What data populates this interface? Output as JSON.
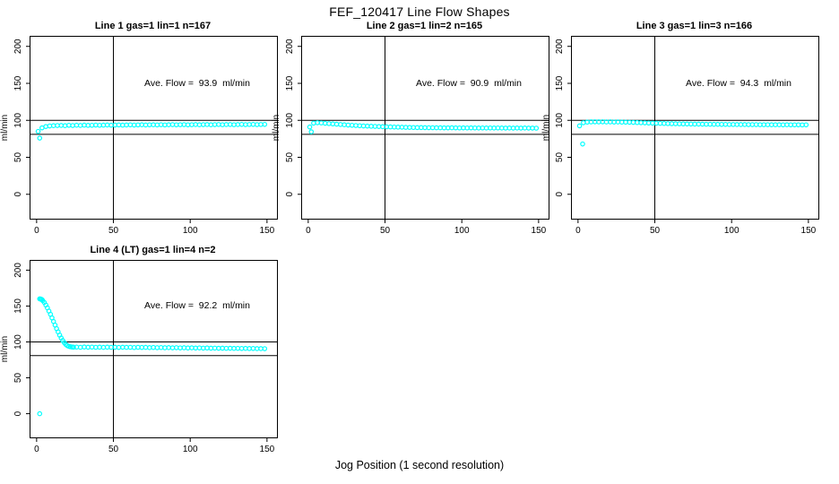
{
  "chart_data": {
    "type": "scatter",
    "title": "FEF_120417  Line Flow Shapes",
    "xlabel": "Jog Position (1 second resolution)",
    "ylabel": "ml/min",
    "point_color": "#00FFFF",
    "line_color": "#000000",
    "axes": {
      "xlim": [
        -4,
        156.5
      ],
      "ylim": [
        -33,
        213
      ],
      "x_ticks": [
        0,
        50,
        100,
        150
      ],
      "y_ticks": [
        0,
        50,
        100,
        150,
        200
      ],
      "grid": false
    },
    "reference_lines": {
      "horizontal": [
        100,
        81
      ],
      "vertical": [
        50
      ]
    },
    "band_x": [
      1,
      3.5,
      6,
      8.5,
      11,
      13.5,
      16,
      18.5,
      21,
      23.5,
      26,
      28.5,
      31,
      33.5,
      36,
      38.5,
      41,
      43.5,
      46,
      48.5,
      51,
      53.5,
      56,
      58.5,
      61,
      63.5,
      66,
      68.5,
      71,
      73.5,
      76,
      78.5,
      81,
      83.5,
      86,
      88.5,
      91,
      93.5,
      96,
      98.5,
      101,
      103.5,
      106,
      108.5,
      111,
      113.5,
      116,
      118.5,
      121,
      123.5,
      126,
      128.5,
      131,
      133.5,
      136,
      138.5,
      141,
      143.5,
      146,
      148.5
    ],
    "subplots": [
      {
        "title": "Line 1 gas=1 lin=1 n=167",
        "line": 1,
        "gas": 1,
        "lin": 1,
        "n": 167,
        "ave_flow_ml_min": 93.9,
        "annotation": "Ave. Flow =  93.9  ml/min",
        "stray_points": [
          [
            2,
            76
          ]
        ],
        "y": [
          85.0,
          89.8,
          91.6,
          92.4,
          92.8,
          93.0,
          93.1,
          92.8,
          93.3,
          93.0,
          93.4,
          93.1,
          93.5,
          93.2,
          93.3,
          93.6,
          93.3,
          93.5,
          93.7,
          93.4,
          93.6,
          93.8,
          93.5,
          93.7,
          93.9,
          93.6,
          93.8,
          94.0,
          93.7,
          93.9,
          94.0,
          93.8,
          94.1,
          93.8,
          94.0,
          94.2,
          93.9,
          94.1,
          94.2,
          93.9,
          94.1,
          94.3,
          94.0,
          94.2,
          94.3,
          94.0,
          94.2,
          94.4,
          94.1,
          94.3,
          94.4,
          94.1,
          94.3,
          94.5,
          94.2,
          94.4,
          94.5,
          94.2,
          94.4,
          94.5
        ]
      },
      {
        "title": "Line 2 gas=1 lin=2 n=165",
        "line": 2,
        "gas": 1,
        "lin": 2,
        "n": 165,
        "ave_flow_ml_min": 90.9,
        "annotation": "Ave. Flow =  90.9  ml/min",
        "stray_points": [
          [
            2,
            84.5
          ]
        ],
        "y": [
          91.0,
          96.2,
          96.8,
          96.5,
          96.0,
          95.6,
          95.2,
          94.8,
          94.4,
          94.0,
          93.6,
          93.3,
          93.0,
          92.7,
          92.4,
          92.2,
          92.0,
          91.8,
          91.6,
          91.4,
          91.2,
          91.1,
          90.9,
          90.8,
          90.7,
          90.5,
          90.4,
          90.3,
          90.2,
          90.2,
          90.1,
          90.0,
          90.0,
          89.9,
          89.9,
          89.8,
          89.8,
          89.9,
          89.8,
          89.7,
          89.8,
          89.7,
          89.8,
          89.7,
          89.6,
          89.7,
          89.6,
          89.7,
          89.6,
          89.7,
          89.6,
          89.5,
          89.6,
          89.5,
          89.6,
          89.5,
          89.6,
          89.5,
          89.5,
          89.4
        ]
      },
      {
        "title": "Line 3 gas=1 lin=3 n=166",
        "line": 3,
        "gas": 1,
        "lin": 3,
        "n": 166,
        "ave_flow_ml_min": 94.3,
        "annotation": "Ave. Flow =  94.3  ml/min",
        "stray_points": [
          [
            3,
            68
          ]
        ],
        "y": [
          92.5,
          96.8,
          97.6,
          97.9,
          98.0,
          97.9,
          98.0,
          97.8,
          97.9,
          97.7,
          97.8,
          97.6,
          97.5,
          97.4,
          97.2,
          97.0,
          96.8,
          96.6,
          96.4,
          96.2,
          96.1,
          95.9,
          95.8,
          95.6,
          95.5,
          95.4,
          95.3,
          95.2,
          95.1,
          95.0,
          94.9,
          94.9,
          94.8,
          94.7,
          94.7,
          94.6,
          94.6,
          94.5,
          94.5,
          94.4,
          94.4,
          94.3,
          94.3,
          94.3,
          94.2,
          94.2,
          94.2,
          94.1,
          94.1,
          94.1,
          94.0,
          94.0,
          94.0,
          93.9,
          94.0,
          93.9,
          93.9,
          93.9,
          93.8,
          93.9
        ]
      },
      {
        "title": "Line 4 (LT) gas=1 lin=4 n=2",
        "line": 4,
        "line_note": "LT",
        "gas": 1,
        "lin": 4,
        "n": 2,
        "ave_flow_ml_min": 92.2,
        "annotation": "Ave. Flow =  92.2  ml/min",
        "stray_points": [
          [
            2,
            0
          ]
        ],
        "x": [
          2,
          2.5,
          3,
          3.5,
          4,
          5,
          6,
          7,
          8,
          9,
          10,
          11,
          12,
          13,
          14,
          15,
          16,
          17,
          18,
          19,
          20,
          21,
          22,
          23,
          24,
          26,
          28.5,
          31,
          33.5,
          36,
          38.5,
          41,
          43.5,
          46,
          48.5,
          51,
          53.5,
          56,
          58.5,
          61,
          63.5,
          66,
          68.5,
          71,
          73.5,
          76,
          78.5,
          81,
          83.5,
          86,
          88.5,
          91,
          93.5,
          96,
          98.5,
          101,
          103.5,
          106,
          108.5,
          111,
          113.5,
          116,
          118.5,
          121,
          123.5,
          126,
          128.5,
          131,
          133.5,
          136,
          138.5,
          141,
          143.5,
          146,
          148.5
        ],
        "y": [
          160,
          159.8,
          159.5,
          158.8,
          157.5,
          155,
          151.5,
          147.5,
          143,
          138.5,
          133.5,
          128.5,
          123.5,
          118.5,
          114,
          109.5,
          105.5,
          102,
          99,
          96.5,
          94.8,
          93.8,
          93.3,
          92.9,
          92.7,
          92.8,
          92.5,
          92.9,
          92.6,
          92.8,
          92.5,
          92.7,
          92.4,
          92.7,
          92.5,
          92.6,
          92.3,
          92.6,
          92.4,
          92.5,
          92.2,
          92.5,
          92.3,
          92.4,
          92.1,
          92.3,
          92.0,
          92.2,
          91.9,
          92.1,
          91.8,
          92.0,
          91.7,
          91.9,
          91.6,
          91.8,
          91.5,
          91.7,
          91.4,
          91.6,
          91.3,
          91.4,
          91.2,
          91.3,
          91.1,
          91.2,
          91.0,
          91.1,
          90.9,
          91.0,
          90.8,
          90.9,
          90.7,
          90.7,
          90.6
        ]
      }
    ]
  }
}
